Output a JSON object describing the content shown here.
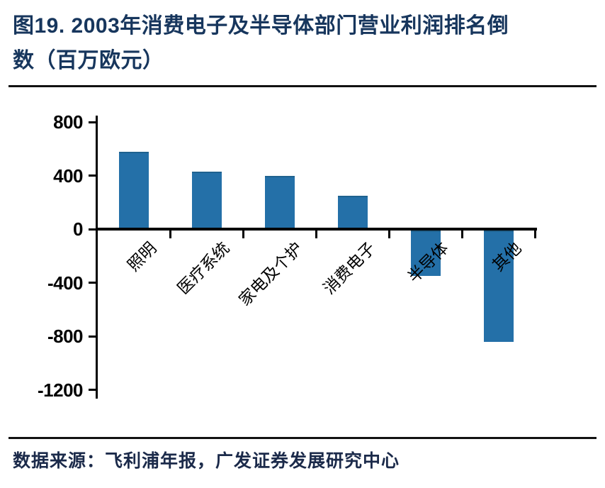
{
  "page": {
    "title_line1": "图19. 2003年消费电子及半导体部门营业利润排名倒",
    "title_line2": "数（百万欧元）",
    "source": "数据来源：飞利浦年报，广发证券发展研究中心"
  },
  "chart_data": {
    "type": "bar",
    "title": "图19. 2003年消费电子及半导体部门营业利润排名倒数（百万欧元）",
    "categories": [
      "照明",
      "医疗系统",
      "家电及个护",
      "消费电子",
      "半导体",
      "其他"
    ],
    "values": [
      580,
      430,
      400,
      250,
      -340,
      -830
    ],
    "xlabel": "",
    "ylabel": "",
    "ylim": [
      -1200,
      800
    ],
    "yticks": [
      800,
      400,
      0,
      -400,
      -800,
      -1200
    ],
    "grid": false,
    "legend": false,
    "bar_color": "#2470A8",
    "axis_color": "#000000",
    "source": "数据来源：飞利浦年报，广发证券发展研究中心"
  },
  "colors": {
    "title_navy": "#17365D",
    "bar_blue": "#2470A8",
    "axis_black": "#000000"
  }
}
